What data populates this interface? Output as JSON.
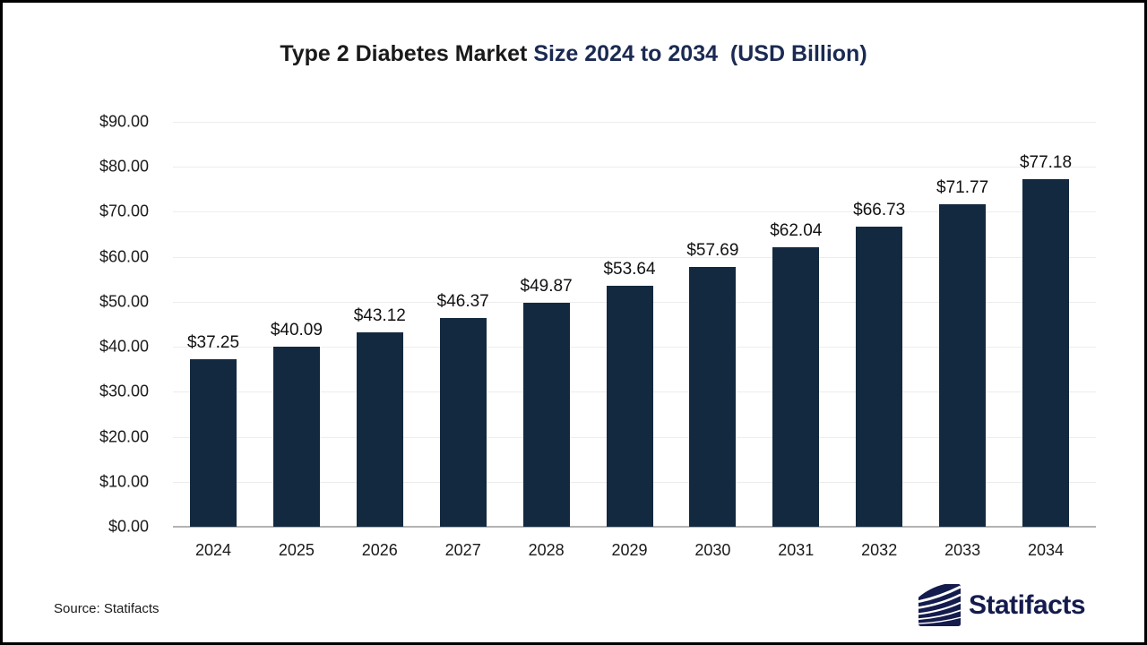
{
  "title": {
    "text_dark": "Type 2 Diabetes Market ",
    "text_accent": "Size 2024 to 2034  (USD Billion)"
  },
  "chart_data": {
    "type": "bar",
    "title": "Type 2 Diabetes Market Size 2024 to 2034 (USD Billion)",
    "categories": [
      "2024",
      "2025",
      "2026",
      "2027",
      "2028",
      "2029",
      "2030",
      "2031",
      "2032",
      "2033",
      "2034"
    ],
    "values": [
      37.25,
      40.09,
      43.12,
      46.37,
      49.87,
      53.64,
      57.69,
      62.04,
      66.73,
      71.77,
      77.18
    ],
    "value_labels": [
      "$37.25",
      "$40.09",
      "$43.12",
      "$46.37",
      "$49.87",
      "$53.64",
      "$57.69",
      "$62.04",
      "$66.73",
      "$71.77",
      "$77.18"
    ],
    "xlabel": "",
    "ylabel": "",
    "ylim": [
      0,
      90
    ],
    "ytick_step": 10,
    "ytick_labels": [
      "$0.00",
      "$10.00",
      "$20.00",
      "$30.00",
      "$40.00",
      "$50.00",
      "$60.00",
      "$70.00",
      "$80.00",
      "$90.00"
    ],
    "grid": true,
    "legend": false,
    "bar_color": "#132940"
  },
  "footer": {
    "source": "Source: Statifacts",
    "logo_text": "Statifacts"
  },
  "colors": {
    "title_dark": "#1a1a1a",
    "title_accent": "#1b2a52",
    "bar": "#132940",
    "gridline": "#ededed",
    "axis_line": "#b3b3b3",
    "logo_navy": "#141b4d",
    "background": "#ffffff",
    "border": "#000000"
  }
}
